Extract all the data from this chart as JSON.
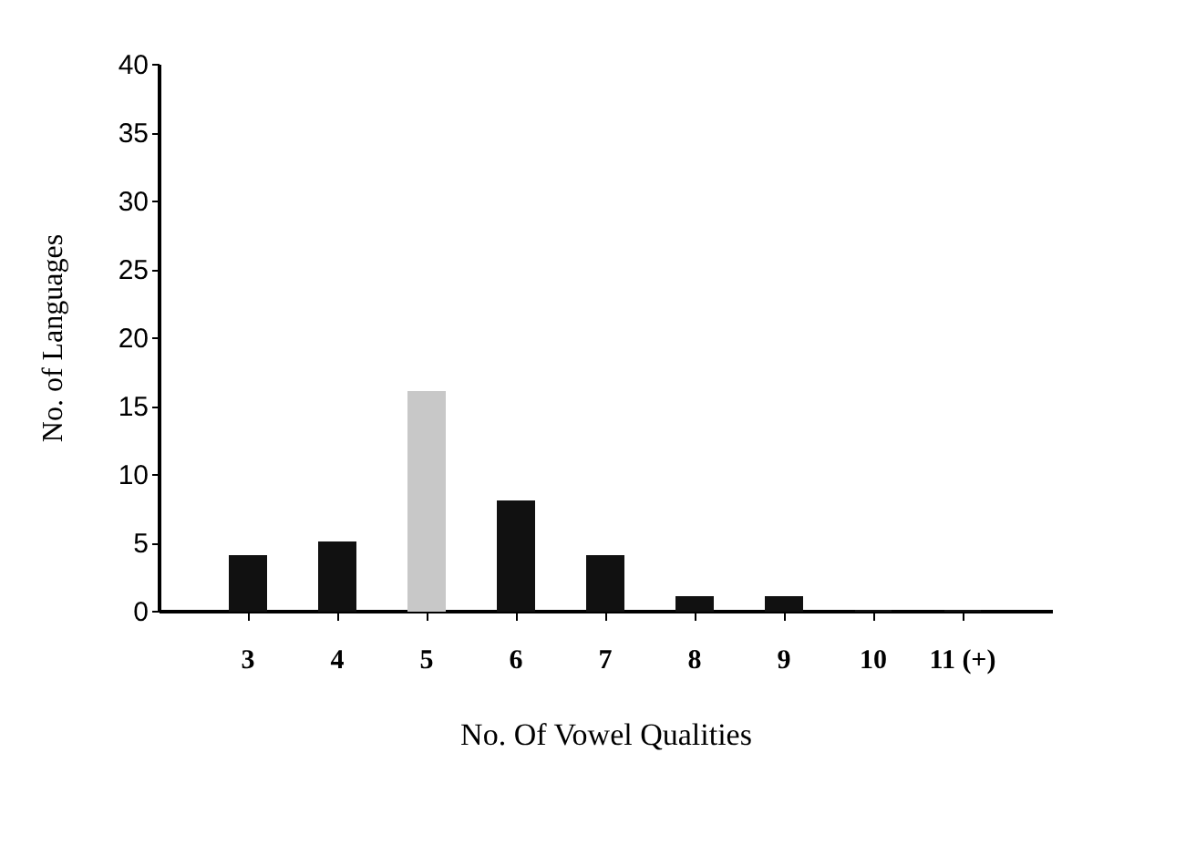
{
  "chart_data": {
    "type": "bar",
    "xlabel": "No. Of Vowel Qualities",
    "ylabel": "No. of Languages",
    "categories": [
      "3",
      "4",
      "5",
      "6",
      "7",
      "8",
      "9",
      "10",
      "11 (+)"
    ],
    "values": [
      4,
      5,
      16,
      8,
      4,
      1,
      1,
      0,
      0
    ],
    "colors": [
      "#111111",
      "#111111",
      "#c8c8c8",
      "#111111",
      "#111111",
      "#111111",
      "#111111",
      "#111111",
      "#111111"
    ],
    "ylim": [
      0,
      40
    ],
    "yticks": [
      0,
      5,
      10,
      15,
      20,
      25,
      30,
      35,
      40
    ],
    "grid": false
  }
}
